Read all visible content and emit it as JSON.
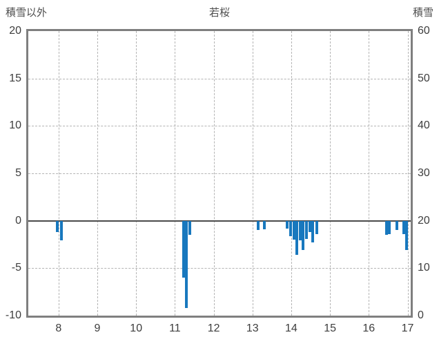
{
  "header": {
    "left_axis_title": "積雪以外",
    "title": "若桜",
    "right_axis_title": "積雪"
  },
  "chart_data": {
    "type": "bar",
    "title": "若桜",
    "left_axis_title": "積雪以外",
    "right_axis_title": "積雪",
    "x_domain": [
      7.22,
      17.08
    ],
    "x_ticks": [
      8,
      9,
      10,
      11,
      12,
      13,
      14,
      15,
      16,
      17
    ],
    "y_left": {
      "domain": [
        -10,
        20
      ],
      "ticks": [
        20,
        15,
        10,
        5,
        0,
        -5,
        -10
      ]
    },
    "y_right": {
      "domain": [
        0,
        60
      ],
      "ticks": [
        60,
        50,
        40,
        30,
        20,
        10,
        0
      ]
    },
    "grid": "dashed",
    "legend": "none",
    "bar_color": "#1878be",
    "frame_color": "#7f7f7f",
    "bars": [
      {
        "x": 7.96,
        "v": -1.2
      },
      {
        "x": 8.08,
        "v": -2.1
      },
      {
        "x": 11.22,
        "v": -6.0
      },
      {
        "x": 11.3,
        "v": -9.2
      },
      {
        "x": 11.38,
        "v": -1.5
      },
      {
        "x": 13.15,
        "v": -1.0
      },
      {
        "x": 13.3,
        "v": -0.9
      },
      {
        "x": 13.9,
        "v": -0.8
      },
      {
        "x": 13.98,
        "v": -1.6
      },
      {
        "x": 14.07,
        "v": -2.0
      },
      {
        "x": 14.15,
        "v": -3.6
      },
      {
        "x": 14.23,
        "v": -2.1
      },
      {
        "x": 14.31,
        "v": -3.1
      },
      {
        "x": 14.4,
        "v": -1.9
      },
      {
        "x": 14.48,
        "v": -1.2
      },
      {
        "x": 14.56,
        "v": -2.3
      },
      {
        "x": 14.65,
        "v": -1.4
      },
      {
        "x": 16.45,
        "v": -1.5
      },
      {
        "x": 16.53,
        "v": -1.4
      },
      {
        "x": 16.72,
        "v": -1.0
      },
      {
        "x": 16.9,
        "v": -1.4
      },
      {
        "x": 16.98,
        "v": -3.1
      }
    ]
  }
}
